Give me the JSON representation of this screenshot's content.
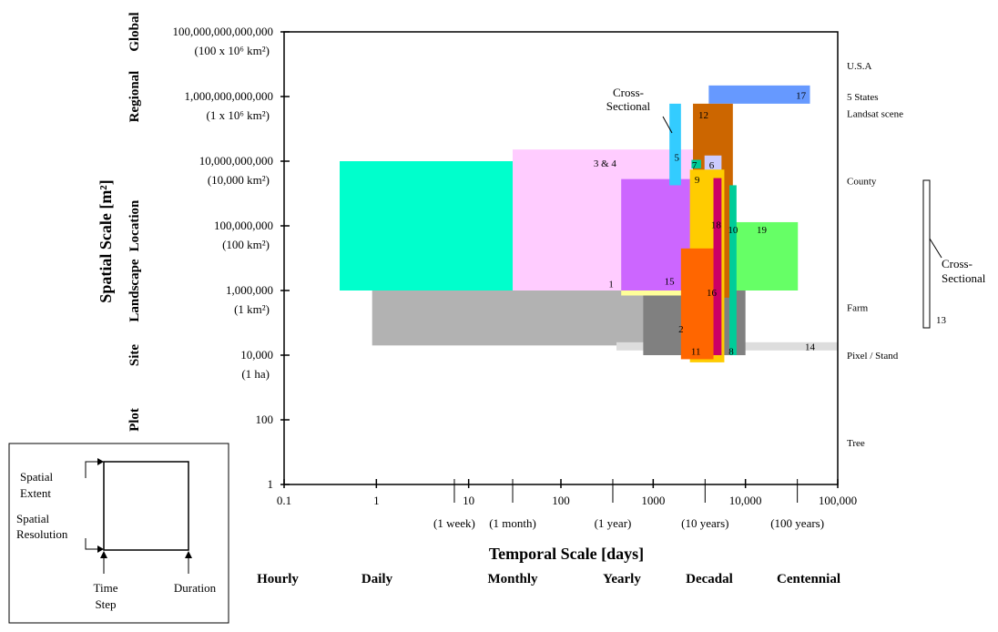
{
  "chart_data": {
    "type": "area",
    "xlabel": "Temporal Scale [days]",
    "ylabel": "Spatial Scale [m²]",
    "x_scale": "log",
    "y_scale": "log",
    "xlim": [
      0.1,
      100000
    ],
    "ylim": [
      1,
      100000000000000
    ],
    "grid": false,
    "x_ticks": [
      {
        "value": 0.1,
        "label": "0.1"
      },
      {
        "value": 1,
        "label": "1"
      },
      {
        "value": 10,
        "label": "10"
      },
      {
        "value": 100,
        "label": "100"
      },
      {
        "value": 1000,
        "label": "1000"
      },
      {
        "value": 10000,
        "label": "10,000"
      },
      {
        "value": 100000,
        "label": "100,000"
      }
    ],
    "x_minor_marks": [
      {
        "value": 7,
        "label": "(1 week)"
      },
      {
        "value": 30,
        "label": "(1 month)"
      },
      {
        "value": 365,
        "label": "(1 year)"
      },
      {
        "value": 3650,
        "label": "(10 years)"
      },
      {
        "value": 36500,
        "label": "(100 years)"
      }
    ],
    "y_ticks": [
      {
        "value": 1,
        "label": "1",
        "sub": ""
      },
      {
        "value": 100,
        "label": "100",
        "sub": ""
      },
      {
        "value": 10000,
        "label": "10,000",
        "sub": "(1 ha)"
      },
      {
        "value": 1000000,
        "label": "1,000,000",
        "sub": "(1 km²)"
      },
      {
        "value": 100000000,
        "label": "100,000,000",
        "sub": "(100 km²)"
      },
      {
        "value": 10000000000,
        "label": "10,000,000,000",
        "sub": "(10,000 km²)"
      },
      {
        "value": 1000000000000,
        "label": "1,000,000,000,000",
        "sub": "(1 x 10⁶ km²)"
      },
      {
        "value": 100000000000000,
        "label": "100,000,000,000,000",
        "sub": "(100 x 10⁶ km²)"
      }
    ],
    "y_categories": [
      {
        "label": "Plot",
        "value": 100
      },
      {
        "label": "Site",
        "value": 10000
      },
      {
        "label": "Landscape",
        "value": 1000000
      },
      {
        "label": "Location",
        "value": 100000000
      },
      {
        "label": "Regional",
        "value": 1000000000000
      },
      {
        "label": "Global",
        "value": 100000000000000
      }
    ],
    "right_labels": [
      {
        "label": "U.S.A",
        "value": 9000000000000
      },
      {
        "label": "5 States",
        "value": 1000000000000
      },
      {
        "label": "Landsat scene",
        "value": 300000000000
      },
      {
        "label": "County",
        "value": 2500000000
      },
      {
        "label": "Farm",
        "value": 300000
      },
      {
        "label": "Pixel / Stand",
        "value": 10000
      },
      {
        "label": "Tree",
        "value": 20
      }
    ],
    "temporal_categories": [
      "Hourly",
      "Daily",
      "Monthly",
      "Yearly",
      "Decadal",
      "Centennial"
    ],
    "studies": [
      {
        "id": "1",
        "label": "1",
        "x0": 0.4,
        "x1": 450,
        "y0": 1000000,
        "y1": 10000000000,
        "color": "#00ffcc"
      },
      {
        "id": "2",
        "label": "2",
        "x0": 0.9,
        "x1": 2700,
        "y0": 20000,
        "y1": 1000000,
        "color": "#b2b2b2"
      },
      {
        "id": "14",
        "label": "14",
        "x0": 400,
        "x1": 100000,
        "y0": 14000,
        "y1": 25000,
        "color": "#dddddd"
      },
      {
        "id": "3-4",
        "label": "3 & 4",
        "x0": 30,
        "x1": 5600,
        "y0": 1000000,
        "y1": 23000000000,
        "color": "#ffccff"
      },
      {
        "id": "8",
        "label": "8",
        "x0": 780,
        "x1": 10000,
        "y0": 10000,
        "y1": 1400000,
        "color": "#808080"
      },
      {
        "id": "16",
        "label": "16",
        "x0": 450,
        "x1": 3000,
        "y0": 700000,
        "y1": 3000000,
        "color": "#ffff99"
      },
      {
        "id": "15",
        "label": "15",
        "x0": 450,
        "x1": 2700,
        "y0": 1000000,
        "y1": 2800000000,
        "color": "#cc66ff"
      },
      {
        "id": "19",
        "label": "19",
        "x0": 7000,
        "x1": 37000,
        "y0": 1000000,
        "y1": 130000000,
        "color": "#66ff66"
      },
      {
        "id": "17",
        "label": "17",
        "x0": 4000,
        "x1": 50000,
        "y0": 600000000000,
        "y1": 2200000000000,
        "color": "#6699ff"
      },
      {
        "id": "12",
        "label": "12",
        "x0": 2700,
        "x1": 7300,
        "y0": 600000,
        "y1": 600000000000,
        "color": "#cc6600"
      },
      {
        "id": "6",
        "label": "6",
        "x0": 3600,
        "x1": 5500,
        "y0": 6000,
        "y1": 15000000000,
        "color": "#ccccff"
      },
      {
        "id": "9",
        "label": "9",
        "x0": 2500,
        "x1": 5900,
        "y0": 6000,
        "y1": 5500000000,
        "color": "#ffcc00"
      },
      {
        "id": "11",
        "label": "11",
        "x0": 2000,
        "x1": 4500,
        "y0": 7500,
        "y1": 20000000,
        "color": "#ff6600"
      },
      {
        "id": "18",
        "label": "18",
        "x0": 4500,
        "x1": 5500,
        "y0": 10000,
        "y1": 3000000000,
        "color": "#cc0066"
      },
      {
        "id": "10",
        "label": "10",
        "x0": 6700,
        "x1": 8000,
        "y0": 10000,
        "y1": 1800000000,
        "color": "#00cc99"
      },
      {
        "id": "7",
        "label": "7",
        "x0": 2600,
        "x1": 3300,
        "y0": 6000000000,
        "y1": 11000000000,
        "color": "#00cc99"
      },
      {
        "id": "5",
        "label": "5",
        "x0": 1500,
        "x1": 2000,
        "y0": 1800000000,
        "y1": 600000000000,
        "color": "#33ccff"
      }
    ],
    "annotations": [
      {
        "label": "Cross-\nSectional"
      },
      {
        "label": "Cross-\nSectional"
      },
      {
        "label": "13"
      }
    ]
  },
  "legend": {
    "spatial_extent": "Spatial\nExtent",
    "spatial_resolution": "Spatial\nResolution",
    "time_step": "Time\nStep",
    "duration": "Duration"
  }
}
